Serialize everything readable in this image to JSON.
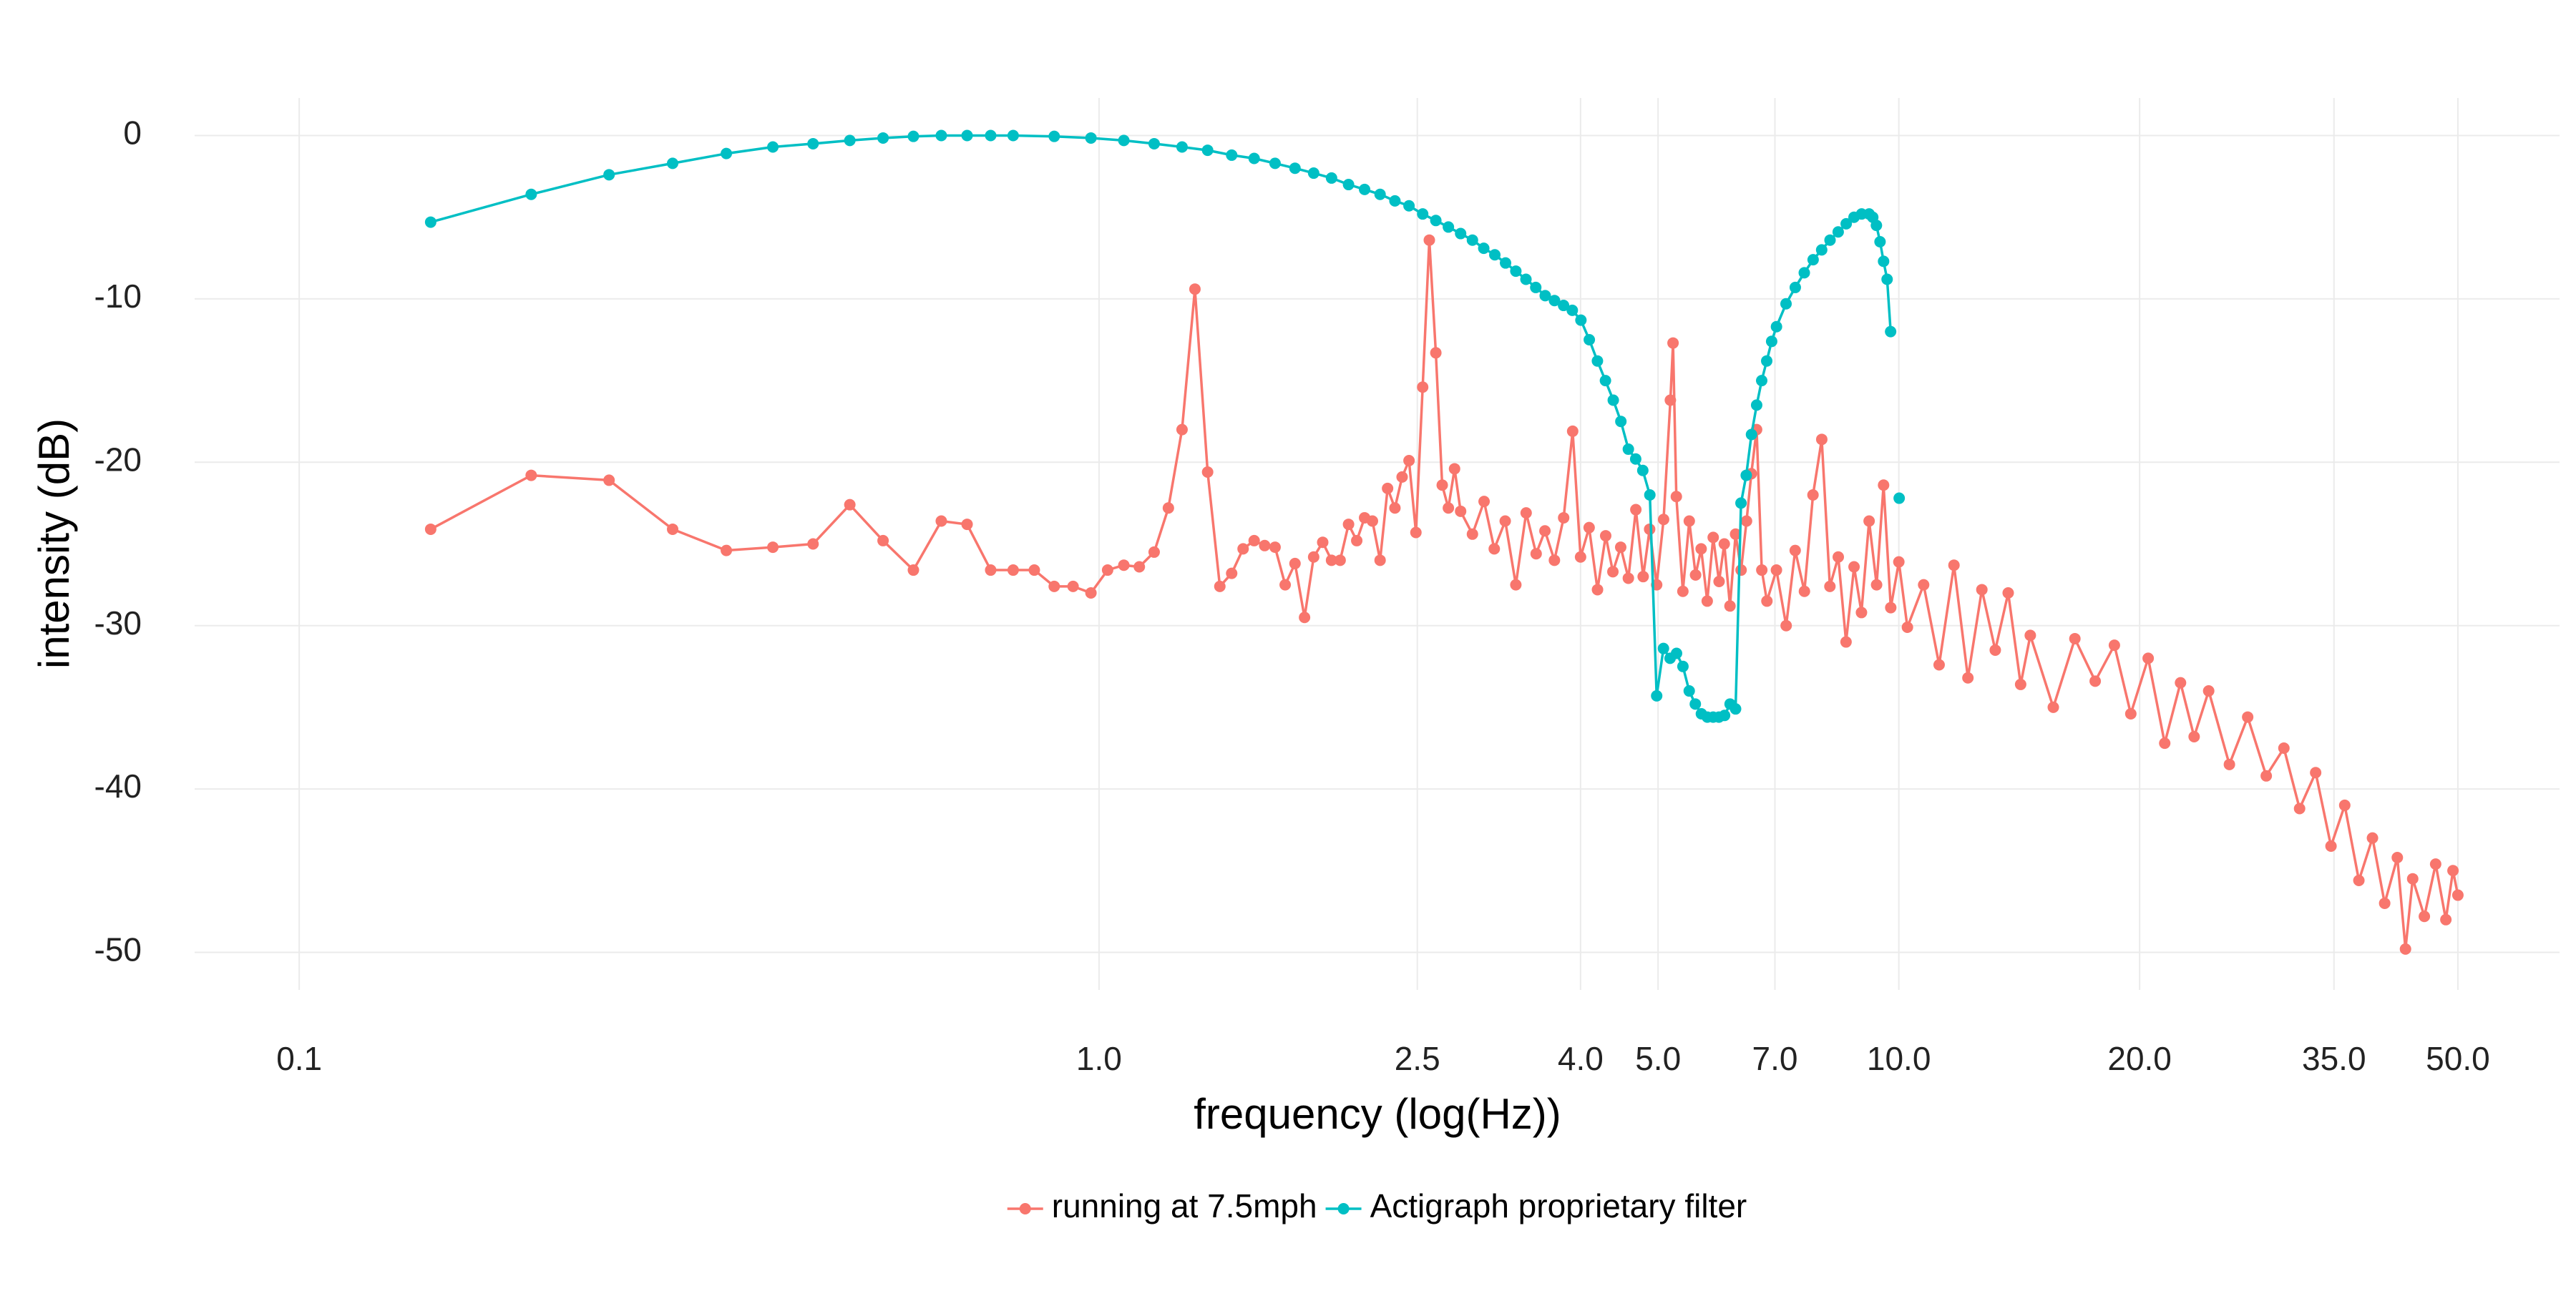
{
  "chart_data": {
    "type": "line",
    "x_label": "frequency (log(Hz))",
    "y_label": "intensity (dB)",
    "xscale": "log",
    "grid": true,
    "legend": "bottom",
    "xlim": [
      0.074,
      67
    ],
    "ylim": [
      -52.3,
      2.3
    ],
    "xticks": [
      0.1,
      {
        "value": 1,
        "label": "1.0"
      },
      2.5,
      {
        "value": 4,
        "label": "4.0"
      },
      {
        "value": 5,
        "label": "5.0"
      },
      {
        "value": 7,
        "label": "7.0"
      },
      {
        "value": 10,
        "label": "10.0"
      },
      {
        "value": 20,
        "label": "20.0"
      },
      {
        "value": 35,
        "label": "35.0"
      },
      {
        "value": 50,
        "label": "50.0"
      }
    ],
    "yticks": [
      0,
      -10,
      -20,
      -30,
      -40,
      -50
    ],
    "series": [
      {
        "name": "running at 7.5mph",
        "color": "#F8766D",
        "x": [
          0.146,
          0.195,
          0.244,
          0.293,
          0.342,
          0.391,
          0.439,
          0.488,
          0.537,
          0.586,
          0.635,
          0.684,
          0.732,
          0.781,
          0.83,
          0.879,
          0.928,
          0.977,
          1.025,
          1.074,
          1.123,
          1.172,
          1.221,
          1.27,
          1.318,
          1.367,
          1.416,
          1.465,
          1.514,
          1.563,
          1.611,
          1.66,
          1.709,
          1.758,
          1.807,
          1.855,
          1.904,
          1.953,
          2.002,
          2.051,
          2.1,
          2.148,
          2.197,
          2.246,
          2.295,
          2.344,
          2.393,
          2.441,
          2.49,
          2.539,
          2.588,
          2.637,
          2.686,
          2.734,
          2.783,
          2.832,
          2.93,
          3.03,
          3.12,
          3.22,
          3.32,
          3.42,
          3.52,
          3.61,
          3.71,
          3.81,
          3.91,
          4.0,
          4.1,
          4.2,
          4.3,
          4.39,
          4.49,
          4.59,
          4.69,
          4.79,
          4.88,
          4.98,
          5.08,
          5.18,
          5.22,
          5.27,
          5.37,
          5.47,
          5.57,
          5.66,
          5.76,
          5.86,
          5.96,
          6.05,
          6.15,
          6.25,
          6.35,
          6.45,
          6.54,
          6.64,
          6.74,
          6.84,
          7.03,
          7.23,
          7.42,
          7.62,
          7.81,
          8.01,
          8.2,
          8.4,
          8.59,
          8.79,
          8.98,
          9.18,
          9.38,
          9.57,
          9.77,
          10.0,
          10.25,
          10.74,
          11.23,
          11.72,
          12.2,
          12.7,
          13.2,
          13.7,
          14.2,
          14.6,
          15.6,
          16.6,
          17.6,
          18.6,
          19.5,
          20.5,
          21.5,
          22.5,
          23.4,
          24.4,
          25.9,
          27.3,
          28.8,
          30.3,
          31.7,
          33.2,
          34.7,
          36.1,
          37.6,
          39.1,
          40.5,
          42.0,
          43.0,
          43.9,
          45.4,
          46.9,
          48.3,
          49.3,
          50.0
        ],
        "values": [
          -24.1,
          -20.8,
          -21.1,
          -24.1,
          -25.4,
          -25.2,
          -25.0,
          -22.6,
          -24.8,
          -26.6,
          -23.6,
          -23.8,
          -26.6,
          -26.6,
          -26.6,
          -27.6,
          -27.6,
          -28.0,
          -26.6,
          -26.3,
          -26.4,
          -25.5,
          -22.8,
          -18.0,
          -9.4,
          -20.6,
          -27.6,
          -26.8,
          -25.3,
          -24.8,
          -25.1,
          -25.2,
          -27.5,
          -26.2,
          -29.5,
          -25.8,
          -24.9,
          -26.0,
          -26.0,
          -23.8,
          -24.8,
          -23.4,
          -23.6,
          -26.0,
          -21.6,
          -22.8,
          -20.9,
          -19.9,
          -24.3,
          -15.4,
          -6.4,
          -13.3,
          -21.4,
          -22.8,
          -20.4,
          -23.0,
          -24.4,
          -22.4,
          -25.3,
          -23.6,
          -27.5,
          -23.1,
          -25.6,
          -24.2,
          -26.0,
          -23.4,
          -18.1,
          -25.8,
          -24.0,
          -27.8,
          -24.5,
          -26.7,
          -25.2,
          -27.1,
          -22.9,
          -27.0,
          -24.1,
          -27.5,
          -23.5,
          -16.2,
          -12.7,
          -22.1,
          -27.9,
          -23.6,
          -26.9,
          -25.3,
          -28.5,
          -24.6,
          -27.3,
          -25.0,
          -28.8,
          -24.4,
          -26.6,
          -23.6,
          -20.7,
          -18.0,
          -26.6,
          -28.5,
          -26.6,
          -30.0,
          -25.4,
          -27.9,
          -22.0,
          -18.6,
          -27.6,
          -25.8,
          -31.0,
          -26.4,
          -29.2,
          -23.6,
          -27.5,
          -21.4,
          -28.9,
          -26.1,
          -30.1,
          -27.5,
          -32.4,
          -26.3,
          -33.2,
          -27.8,
          -31.5,
          -28.0,
          -33.6,
          -30.6,
          -35.0,
          -30.8,
          -33.4,
          -31.2,
          -35.4,
          -32.0,
          -37.2,
          -33.5,
          -36.8,
          -34.0,
          -38.5,
          -35.6,
          -39.2,
          -37.5,
          -41.2,
          -39.0,
          -43.5,
          -41.0,
          -45.6,
          -43.0,
          -47.0,
          -44.2,
          -49.8,
          -45.5,
          -47.8,
          -44.6,
          -48.0,
          -45.0,
          -46.5
        ]
      },
      {
        "name": "Actigraph proprietary filter",
        "color": "#00BFC4",
        "x": [
          0.146,
          0.195,
          0.244,
          0.293,
          0.342,
          0.391,
          0.439,
          0.488,
          0.537,
          0.586,
          0.635,
          0.684,
          0.732,
          0.781,
          0.879,
          0.977,
          1.074,
          1.172,
          1.27,
          1.367,
          1.465,
          1.563,
          1.66,
          1.758,
          1.855,
          1.953,
          2.051,
          2.148,
          2.246,
          2.344,
          2.441,
          2.539,
          2.637,
          2.734,
          2.832,
          2.93,
          3.027,
          3.125,
          3.223,
          3.32,
          3.418,
          3.516,
          3.613,
          3.711,
          3.809,
          3.906,
          4.004,
          4.102,
          4.199,
          4.297,
          4.395,
          4.492,
          4.59,
          4.688,
          4.785,
          4.883,
          4.98,
          5.078,
          5.176,
          5.273,
          5.371,
          5.469,
          5.566,
          5.664,
          5.762,
          5.859,
          5.957,
          6.055,
          6.152,
          6.25,
          6.348,
          6.445,
          6.543,
          6.641,
          6.738,
          6.836,
          6.934,
          7.031,
          7.227,
          7.422,
          7.617,
          7.813,
          8.008,
          8.203,
          8.398,
          8.594,
          8.789,
          8.984,
          9.18,
          9.277,
          9.375,
          9.473,
          9.57,
          9.668,
          9.766,
          9.9,
          10.01
        ],
        "values": [
          -5.3,
          -3.6,
          -2.4,
          -1.7,
          -1.1,
          -0.7,
          -0.5,
          -0.3,
          -0.15,
          -0.05,
          0,
          0,
          0,
          0,
          -0.05,
          -0.15,
          -0.3,
          -0.5,
          -0.7,
          -0.9,
          -1.2,
          -1.4,
          -1.7,
          -2.0,
          -2.3,
          -2.6,
          -3.0,
          -3.3,
          -3.6,
          -4.0,
          -4.3,
          -4.8,
          -5.2,
          -5.6,
          -6.0,
          -6.4,
          -6.9,
          -7.3,
          -7.8,
          -8.3,
          -8.8,
          -9.3,
          -9.8,
          -10.1,
          -10.4,
          -10.7,
          -11.3,
          -12.5,
          -13.8,
          -15.0,
          -16.2,
          -17.5,
          -19.2,
          -19.8,
          -20.5,
          -22.0,
          -34.3,
          -31.4,
          -32.0,
          -31.7,
          -32.5,
          -34.0,
          -34.8,
          -35.4,
          -35.6,
          -35.6,
          -35.6,
          -35.5,
          -34.8,
          -35.1,
          -22.5,
          -20.8,
          -18.3,
          -16.5,
          -15.0,
          -13.8,
          -12.6,
          -11.7,
          -10.3,
          -9.3,
          -8.4,
          -7.6,
          -7.0,
          -6.4,
          -5.9,
          -5.4,
          -5.0,
          -4.8,
          -4.8,
          -5.0,
          -5.5,
          -6.5,
          -7.7,
          -8.8,
          -12.0,
          null,
          -22.2
        ]
      }
    ]
  }
}
